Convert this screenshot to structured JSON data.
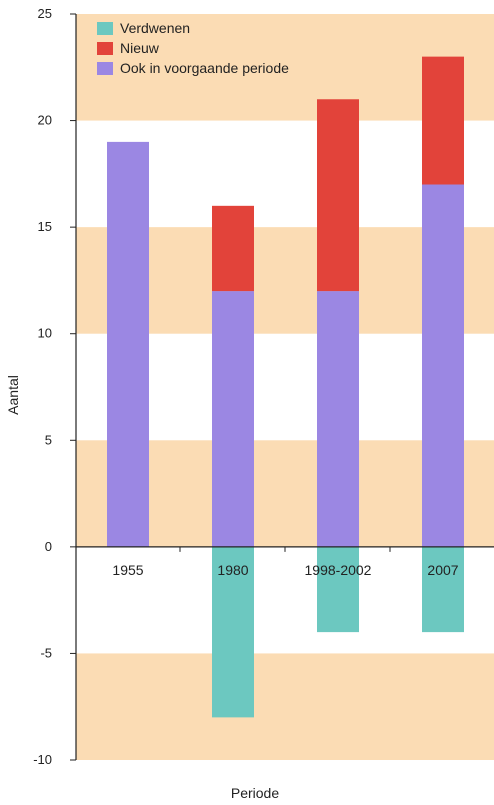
{
  "chart_data": {
    "type": "bar",
    "stacked": true,
    "categories": [
      "1955",
      "1980",
      "1998-2002",
      "2007"
    ],
    "series": [
      {
        "name": "Verdwenen",
        "values": [
          0,
          -8,
          -4,
          -4
        ],
        "color": "#6cc8c0"
      },
      {
        "name": "Nieuw",
        "values": [
          0,
          4,
          9,
          6
        ],
        "color": "#e2433a"
      },
      {
        "name": "Ook in voorgaande periode",
        "values": [
          19,
          12,
          12,
          17
        ],
        "color": "#9b87e3"
      }
    ],
    "xlabel": "Periode",
    "ylabel": "Aantal",
    "ylim": [
      -10,
      25
    ],
    "yticks": [
      -10,
      -5,
      0,
      5,
      10,
      15,
      20,
      25
    ],
    "ytick_labels": [
      "-10",
      "-5",
      "0",
      "5",
      "10",
      "15",
      "20",
      "25"
    ],
    "legend_position": "top-left",
    "background_bands": {
      "color": "#fbdcb4",
      "ranges": [
        [
          20,
          25
        ],
        [
          10,
          15
        ],
        [
          0,
          5
        ],
        [
          -10,
          -5
        ]
      ]
    },
    "grid": false
  }
}
